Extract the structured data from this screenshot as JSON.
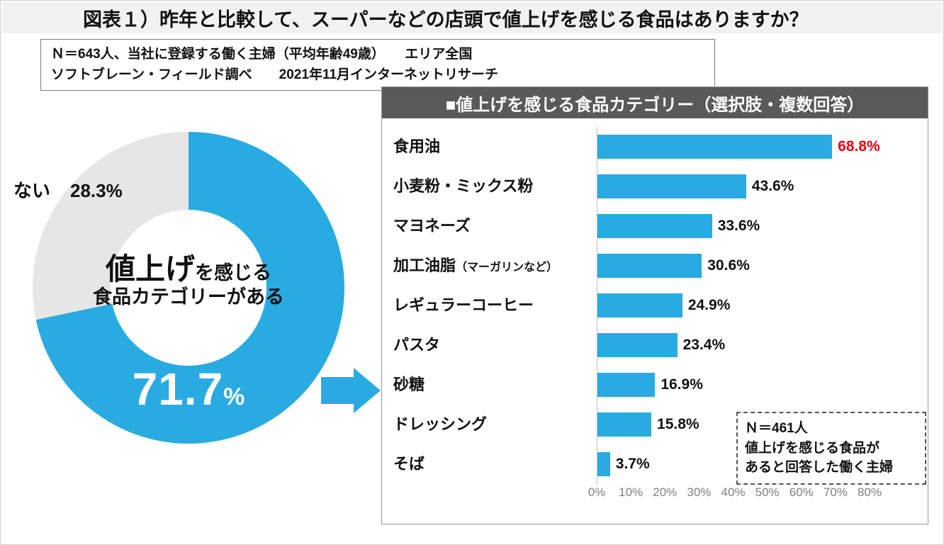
{
  "page": {
    "title": "図表１）昨年と比較して、スーパーなどの店頭で値上げを感じる食品はありますか？"
  },
  "note": {
    "line1": "Ｎ＝643人、当社に登録する働く主婦（平均年齢49歳）　　エリア全国",
    "line2": "ソフトブレーン・フィールド調べ　　2021年11月インターネットリサーチ"
  },
  "colors": {
    "accent": "#29abe2",
    "gray": "#e6e6e6",
    "red": "#e60012",
    "header_bg": "#595959",
    "title_bg": "#f2f2f2",
    "tick": "#7f7f7f"
  },
  "donut": {
    "no_label": "ない",
    "no_value": "28.3%",
    "center_big": "値上げ",
    "center_rest": "を感じる",
    "center_line2": "食品カテゴリーがある",
    "big_value": "71.7",
    "big_unit": "%"
  },
  "panel": {
    "header": "■値上げを感じる食品カテゴリー（選択肢・複数回答）",
    "note_line1": "Ｎ＝461人",
    "note_line2": "値上げを感じる食品が",
    "note_line3": "あると回答した働く主婦"
  },
  "chart_data": [
    {
      "type": "pie",
      "donut": true,
      "title": "昨年と比較して、スーパーなどの店頭で値上げを感じる食品はありますか？",
      "slices": [
        {
          "label": "値上げを感じる食品カテゴリーがある",
          "value": 71.7,
          "color": "#29abe2"
        },
        {
          "label": "ない",
          "value": 28.3,
          "color": "#e6e6e6"
        }
      ]
    },
    {
      "type": "bar",
      "orientation": "horizontal",
      "title": "■値上げを感じる食品カテゴリー（選択肢・複数回答）",
      "categories": [
        "食用油",
        "小麦粉・ミックス粉",
        "マヨネーズ",
        "加工油脂（マーガリンなど）",
        "レギュラーコーヒー",
        "パスタ",
        "砂糖",
        "ドレッシング",
        "そば"
      ],
      "values": [
        68.8,
        43.6,
        33.6,
        30.6,
        24.9,
        23.4,
        16.9,
        15.8,
        3.7
      ],
      "value_labels": [
        "68.8%",
        "43.6%",
        "33.6%",
        "30.6%",
        "24.9%",
        "23.4%",
        "16.9%",
        "15.8%",
        "3.7%"
      ],
      "highlight_index": 0,
      "xlim": [
        0,
        80
      ],
      "x_ticks": [
        "0%",
        "10%",
        "20%",
        "30%",
        "40%",
        "50%",
        "60%",
        "70%",
        "80%"
      ],
      "bar_color": "#29abe2",
      "grid": false,
      "legend": false
    }
  ]
}
